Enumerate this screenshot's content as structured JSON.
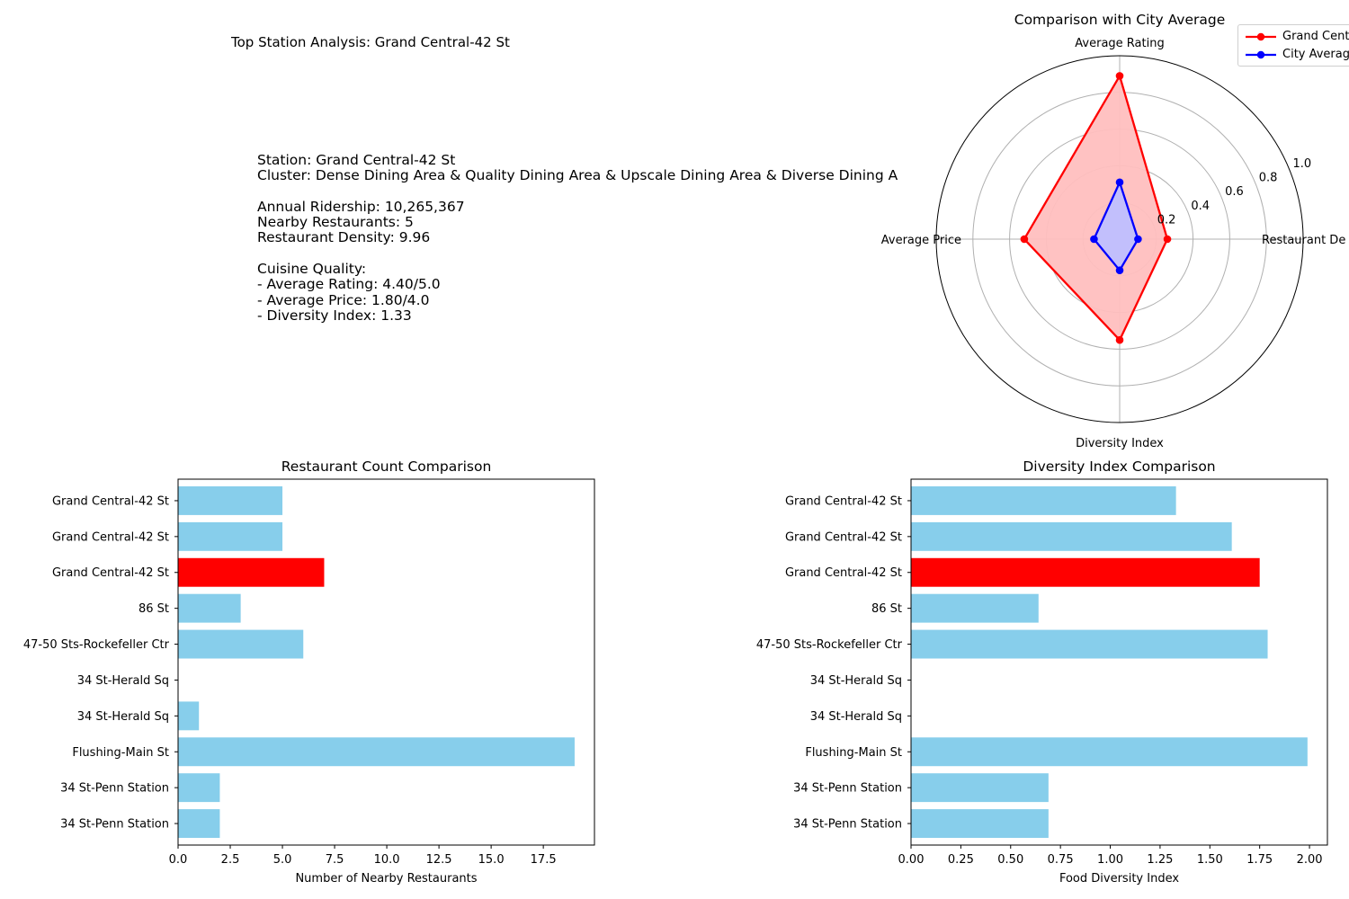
{
  "figure": {
    "main_title": "Top Station Analysis: Grand Central-42 St",
    "info_lines": [
      "Station: Grand Central-42 St",
      "Cluster: Dense Dining Area & Quality Dining Area & Upscale Dining Area & Diverse Dining A",
      "",
      "Annual Ridership: 10,265,367",
      "Nearby Restaurants: 5",
      "Restaurant Density: 9.96",
      "",
      "Cuisine Quality:",
      "- Average Rating: 4.40/5.0",
      "- Average Price: 1.80/4.0",
      "- Diversity Index: 1.33"
    ]
  },
  "chart_data": [
    {
      "type": "radar",
      "title": "Comparison with City Average",
      "axes": [
        "Restaurant De",
        "Average Rating",
        "Average Price",
        "Diversity Index"
      ],
      "rlim": [
        0,
        1.0
      ],
      "rticks": [
        "0.2",
        "0.4",
        "0.6",
        "0.8",
        "1.0"
      ],
      "legend_position": "top-right",
      "series": [
        {
          "name": "Grand Cent",
          "color": "#ff0000",
          "fill": "#ffbfbf",
          "values": [
            0.26,
            0.89,
            0.52,
            0.55
          ]
        },
        {
          "name": "City Averag",
          "color": "#0000ff",
          "fill": "#bfbfff",
          "values": [
            0.1,
            0.31,
            0.14,
            0.17
          ]
        }
      ]
    },
    {
      "type": "bar",
      "orientation": "horizontal",
      "title": "Restaurant Count Comparison",
      "xlabel": "Number of Nearby Restaurants",
      "categories": [
        "Grand Central-42 St",
        "Grand Central-42 St",
        "Grand Central-42 St",
        "86 St",
        "47-50 Sts-Rockefeller Ctr",
        "34 St-Herald Sq",
        "34 St-Herald Sq",
        "Flushing-Main St",
        "34 St-Penn Station",
        "34 St-Penn Station"
      ],
      "values": [
        5,
        5,
        7,
        3,
        6,
        0,
        1,
        19,
        2,
        2
      ],
      "highlight_index": 2,
      "bar_color": "#87ceeb",
      "highlight_color": "#ff0000",
      "xlim": [
        0,
        19.95
      ],
      "xticks": [
        0,
        2.5,
        5,
        7.5,
        10,
        12.5,
        15,
        17.5
      ],
      "xtick_labels": [
        "0.0",
        "2.5",
        "5.0",
        "7.5",
        "10.0",
        "12.5",
        "15.0",
        "17.5"
      ]
    },
    {
      "type": "bar",
      "orientation": "horizontal",
      "title": "Diversity Index Comparison",
      "xlabel": "Food Diversity Index",
      "categories": [
        "Grand Central-42 St",
        "Grand Central-42 St",
        "Grand Central-42 St",
        "86 St",
        "47-50 Sts-Rockefeller Ctr",
        "34 St-Herald Sq",
        "34 St-Herald Sq",
        "Flushing-Main St",
        "34 St-Penn Station",
        "34 St-Penn Station"
      ],
      "values": [
        1.33,
        1.61,
        1.75,
        0.64,
        1.79,
        0,
        0,
        1.99,
        0.69,
        0.69
      ],
      "highlight_index": 2,
      "bar_color": "#87ceeb",
      "highlight_color": "#ff0000",
      "xlim": [
        0,
        2.09
      ],
      "xticks": [
        0,
        0.25,
        0.5,
        0.75,
        1.0,
        1.25,
        1.5,
        1.75,
        2.0
      ],
      "xtick_labels": [
        "0.00",
        "0.25",
        "0.50",
        "0.75",
        "1.00",
        "1.25",
        "1.50",
        "1.75",
        "2.00"
      ]
    }
  ]
}
